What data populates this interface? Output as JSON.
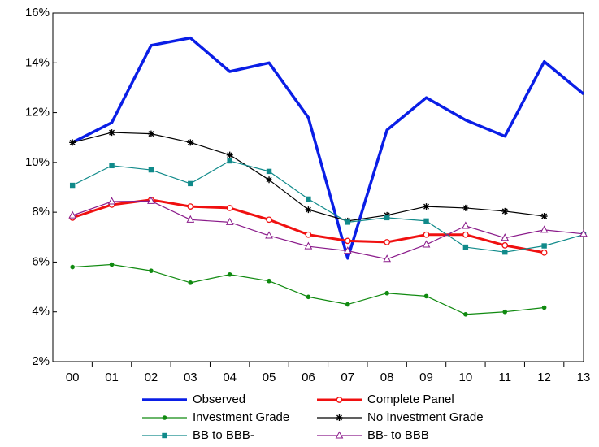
{
  "chart_data": {
    "type": "line",
    "categories": [
      "00",
      "01",
      "02",
      "03",
      "04",
      "05",
      "06",
      "07",
      "08",
      "09",
      "10",
      "11",
      "12",
      "13"
    ],
    "ylim": [
      2,
      16
    ],
    "yticks": [
      {
        "value": 2,
        "label": "2%"
      },
      {
        "value": 4,
        "label": "4%"
      },
      {
        "value": 6,
        "label": "6%"
      },
      {
        "value": 8,
        "label": "8%"
      },
      {
        "value": 10,
        "label": "10%"
      },
      {
        "value": 12,
        "label": "12%"
      },
      {
        "value": 14,
        "label": "14%"
      },
      {
        "value": 16,
        "label": "16%"
      }
    ],
    "grid": false,
    "legend": "bottom",
    "series": [
      {
        "name": "Observed",
        "color": "#0a1ee6",
        "width": 3.5,
        "marker": "none",
        "values": [
          10.8,
          11.6,
          14.7,
          15.0,
          13.65,
          14.0,
          11.8,
          6.15,
          11.3,
          12.6,
          11.7,
          11.05,
          14.05,
          12.75
        ]
      },
      {
        "name": "Complete Panel",
        "color": "#f01010",
        "width": 3,
        "marker": "open-circle",
        "values": [
          7.78,
          8.3,
          8.5,
          8.23,
          8.17,
          7.7,
          7.1,
          6.85,
          6.8,
          7.1,
          7.1,
          6.67,
          6.38,
          null
        ]
      },
      {
        "name": "Investment Grade",
        "color": "#108a10",
        "width": 1.2,
        "marker": "dot",
        "values": [
          5.8,
          5.9,
          5.65,
          5.17,
          5.5,
          5.24,
          4.6,
          4.3,
          4.75,
          4.63,
          3.9,
          4.0,
          4.17,
          null
        ]
      },
      {
        "name": "No Investment Grade",
        "color": "#000000",
        "width": 1.2,
        "marker": "star",
        "values": [
          10.8,
          11.2,
          11.15,
          10.8,
          10.3,
          9.3,
          8.1,
          7.65,
          7.88,
          8.23,
          8.17,
          8.04,
          7.84,
          null
        ]
      },
      {
        "name": "BB to BBB-",
        "color": "#108a8a",
        "width": 1.2,
        "marker": "square",
        "values": [
          9.08,
          9.87,
          9.7,
          9.15,
          10.06,
          9.64,
          8.53,
          7.6,
          7.78,
          7.65,
          6.6,
          6.4,
          6.65,
          7.1
        ]
      },
      {
        "name": "BB- to BBB",
        "color": "#8a1a8a",
        "width": 1.2,
        "marker": "open-triangle",
        "values": [
          7.87,
          8.43,
          8.45,
          7.7,
          7.6,
          7.06,
          6.63,
          6.45,
          6.12,
          6.7,
          7.45,
          6.97,
          7.29,
          7.13
        ]
      }
    ]
  }
}
